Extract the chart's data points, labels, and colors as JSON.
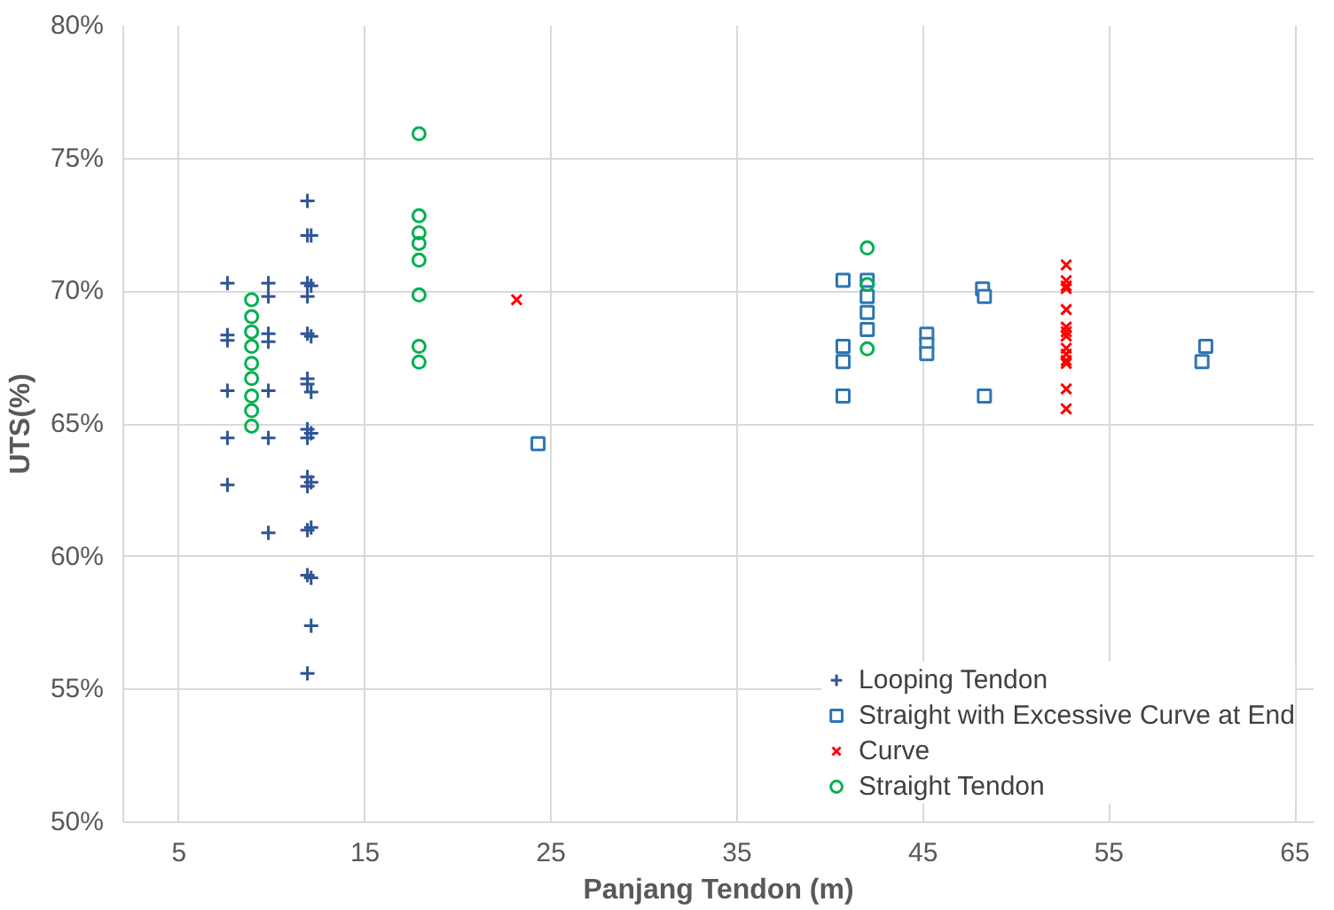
{
  "chart_data": {
    "type": "scatter",
    "xlabel": "Panjang Tendon (m)",
    "ylabel": "UTS(%)",
    "xlim": [
      2,
      66
    ],
    "xticks": [
      5,
      15,
      25,
      35,
      45,
      55,
      65
    ],
    "ylim": [
      50,
      80
    ],
    "yticks": [
      {
        "value": 50,
        "label": "50%"
      },
      {
        "value": 55,
        "label": "55%"
      },
      {
        "value": 60,
        "label": "60%"
      },
      {
        "value": 65,
        "label": "65%"
      },
      {
        "value": 70,
        "label": "70%"
      },
      {
        "value": 75,
        "label": "75%"
      },
      {
        "value": 80,
        "label": "80%"
      }
    ],
    "grid": true,
    "legend": "bottom right",
    "series": [
      {
        "name": "Looping Tendon",
        "color": "#2f5597",
        "marker": "cross",
        "x": [
          7.6,
          7.6,
          7.6,
          7.6,
          7.6,
          7.6,
          9.8,
          9.8,
          9.8,
          9.8,
          9.8,
          9.8,
          9.8,
          11.9,
          11.9,
          12.1,
          11.9,
          12.1,
          11.9,
          11.9,
          12.1,
          11.9,
          11.9,
          12.1,
          11.9,
          12.1,
          11.9,
          11.9,
          12.1,
          11.9,
          12.1,
          11.9,
          11.9,
          12.1,
          12.1,
          11.9
        ],
        "values": [
          70.3,
          68.35,
          68.15,
          66.25,
          64.47,
          62.7,
          70.3,
          69.8,
          68.4,
          68.1,
          66.25,
          64.47,
          60.9,
          73.4,
          72.1,
          72.1,
          70.3,
          70.2,
          69.8,
          68.4,
          68.3,
          66.7,
          66.5,
          66.2,
          64.8,
          64.65,
          64.47,
          63.0,
          62.8,
          62.65,
          61.1,
          61.0,
          59.3,
          59.2,
          57.4,
          55.6
        ]
      },
      {
        "name": "Straight with Excessive Curve at End",
        "color": "#2e75b6",
        "marker": "square",
        "x": [
          24.3,
          40.7,
          40.7,
          40.7,
          40.7,
          42.0,
          42.0,
          42.0,
          42.0,
          45.2,
          45.2,
          45.2,
          48.2,
          48.3,
          48.3,
          60.2,
          60.0
        ],
        "values": [
          64.26,
          70.41,
          67.92,
          67.35,
          66.05,
          70.41,
          69.8,
          69.2,
          68.56,
          68.38,
          68.0,
          67.65,
          70.09,
          69.8,
          66.05,
          67.92,
          67.35
        ]
      },
      {
        "name": "Curve",
        "color": "#ff0000",
        "marker": "x",
        "x": [
          23.15,
          52.7,
          52.7,
          52.7,
          52.7,
          52.7,
          52.7,
          52.7,
          52.7,
          52.7,
          52.7,
          52.7,
          52.7,
          52.7,
          52.7
        ],
        "values": [
          69.68,
          70.99,
          70.4,
          70.2,
          70.1,
          69.31,
          68.65,
          68.47,
          68.31,
          67.85,
          67.63,
          67.39,
          67.28,
          66.32,
          65.57
        ]
      },
      {
        "name": "Straight Tendon",
        "color": "#00b050",
        "marker": "circle",
        "x": [
          8.9,
          8.9,
          8.9,
          8.9,
          8.9,
          8.9,
          8.9,
          8.9,
          8.9,
          17.9,
          17.9,
          17.9,
          17.9,
          17.9,
          17.9,
          17.9,
          17.9,
          42.0,
          42.0,
          42.0
        ],
        "values": [
          69.68,
          69.04,
          68.47,
          67.92,
          67.28,
          66.71,
          66.05,
          65.5,
          64.92,
          75.93,
          72.84,
          72.2,
          71.8,
          71.17,
          69.86,
          67.92,
          67.33,
          71.63,
          70.25,
          67.83
        ]
      }
    ]
  }
}
